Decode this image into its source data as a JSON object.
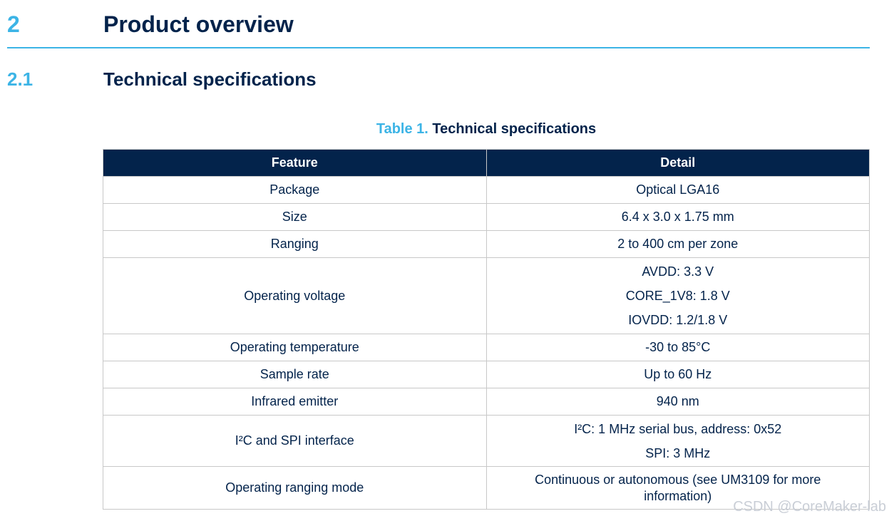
{
  "heading1": {
    "number": "2",
    "title": "Product overview"
  },
  "heading2": {
    "number": "2.1",
    "title": "Technical specifications"
  },
  "caption": {
    "label": "Table 1.",
    "title": "Technical specifications"
  },
  "table": {
    "columns": [
      "Feature",
      "Detail"
    ],
    "rows": [
      {
        "feature": "Package",
        "details": [
          "Optical LGA16"
        ]
      },
      {
        "feature": "Size",
        "details": [
          "6.4 x 3.0 x 1.75 mm"
        ]
      },
      {
        "feature": "Ranging",
        "details": [
          "2 to 400 cm per zone"
        ]
      },
      {
        "feature": "Operating voltage",
        "details": [
          "AVDD: 3.3 V",
          "CORE_1V8: 1.8 V",
          "IOVDD: 1.2/1.8 V"
        ]
      },
      {
        "feature": "Operating temperature",
        "details": [
          "-30 to 85°C"
        ]
      },
      {
        "feature": "Sample rate",
        "details": [
          "Up to 60 Hz"
        ]
      },
      {
        "feature": "Infrared emitter",
        "details": [
          "940 nm"
        ]
      },
      {
        "feature": "I²C and SPI interface",
        "details": [
          "I²C: 1 MHz serial bus, address: 0x52",
          "SPI: 3 MHz"
        ]
      },
      {
        "feature": "Operating ranging mode",
        "details": [
          "Continuous or autonomous (see UM3109 for more information)"
        ]
      }
    ]
  },
  "watermark": "CSDN @CoreMaker-lab"
}
